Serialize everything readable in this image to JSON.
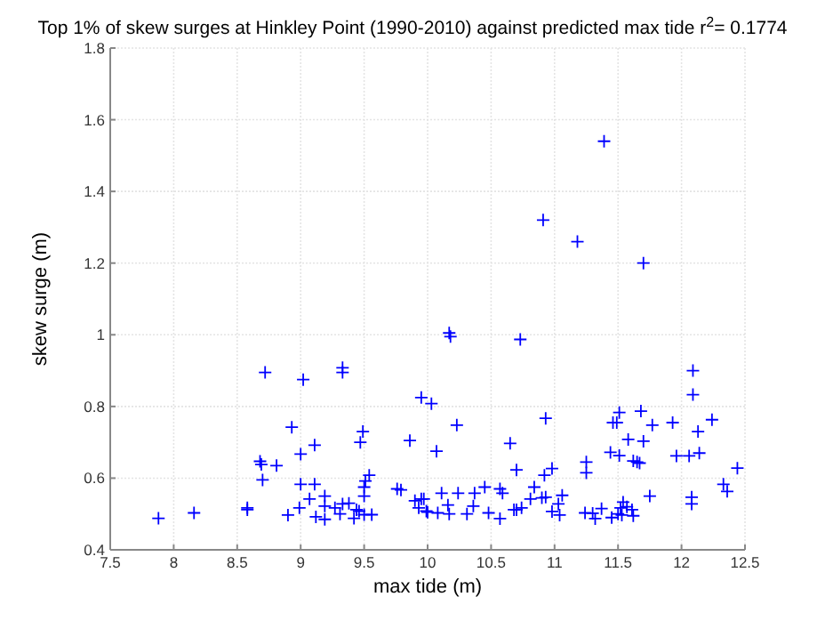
{
  "chart_data": {
    "type": "scatter",
    "title": "Top 1% of skew surges at Hinkley Point (1990-2010) against predicted max tide r$^{2}$= 0.1774",
    "xlabel": "max tide (m)",
    "ylabel": "skew surge (m)",
    "xlim": [
      7.5,
      12.5
    ],
    "xticks": [
      7.5,
      8,
      8.5,
      9,
      9.5,
      10,
      10.5,
      11,
      11.5,
      12,
      12.5
    ],
    "ylim": [
      0.4,
      1.8
    ],
    "yticks": [
      0.4,
      0.6,
      0.8,
      1,
      1.2,
      1.4,
      1.6,
      1.8
    ],
    "grid": true,
    "marker": "cross",
    "series": [
      {
        "color": "#0000ff",
        "x": [
          7.88,
          8.16,
          8.58,
          8.58,
          8.68,
          8.69,
          8.7,
          8.72,
          8.81,
          8.9,
          8.93,
          8.99,
          9.0,
          9.02,
          9.0,
          9.07,
          9.11,
          9.11,
          9.12,
          9.19,
          9.19,
          9.19,
          9.27,
          9.31,
          9.33,
          9.33,
          9.33,
          9.38,
          9.42,
          9.44,
          9.46,
          9.47,
          9.49,
          9.5,
          9.5,
          9.51,
          9.54,
          9.5,
          9.56,
          9.76,
          9.79,
          9.86,
          9.9,
          9.93,
          9.95,
          9.97,
          9.95,
          9.99,
          10.0,
          10.03,
          10.07,
          10.08,
          10.11,
          10.16,
          10.17,
          10.17,
          10.18,
          10.23,
          10.24,
          10.31,
          10.36,
          10.37,
          10.45,
          10.48,
          10.57,
          10.59,
          10.57,
          10.65,
          10.68,
          10.7,
          10.74,
          10.7,
          10.73,
          10.81,
          10.84,
          10.9,
          10.92,
          10.93,
          10.93,
          10.98,
          10.98,
          11.03,
          11.04,
          11.06,
          11.24,
          11.25,
          11.25,
          11.3,
          11.32,
          11.37,
          11.44,
          11.45,
          11.46,
          11.49,
          11.51,
          11.5,
          11.51,
          11.52,
          11.54,
          11.53,
          11.57,
          11.58,
          11.61,
          11.62,
          11.62,
          11.65,
          11.67,
          11.68,
          11.7,
          11.75,
          11.77,
          11.93,
          11.96,
          12.06,
          12.09,
          12.09,
          12.08,
          12.08,
          12.13,
          12.14,
          12.24,
          12.33,
          12.36,
          12.44,
          11.39,
          10.91,
          11.18,
          11.7
        ],
        "values": [
          0.488,
          0.503,
          0.517,
          0.512,
          0.647,
          0.638,
          0.595,
          0.895,
          0.635,
          0.497,
          0.742,
          0.517,
          0.667,
          0.875,
          0.583,
          0.542,
          0.583,
          0.692,
          0.492,
          0.55,
          0.522,
          0.485,
          0.517,
          0.5,
          0.528,
          0.908,
          0.895,
          0.53,
          0.488,
          0.512,
          0.508,
          0.7,
          0.73,
          0.55,
          0.575,
          0.592,
          0.608,
          0.498,
          0.498,
          0.57,
          0.567,
          0.705,
          0.537,
          0.517,
          0.542,
          0.542,
          0.825,
          0.508,
          0.505,
          0.808,
          0.675,
          0.503,
          0.558,
          0.525,
          0.5,
          1.005,
          0.995,
          0.748,
          0.558,
          0.5,
          0.522,
          0.558,
          0.575,
          0.503,
          0.57,
          0.558,
          0.487,
          0.697,
          0.512,
          0.512,
          0.517,
          0.623,
          0.987,
          0.542,
          0.575,
          0.545,
          0.608,
          0.547,
          0.767,
          0.627,
          0.507,
          0.528,
          0.497,
          0.552,
          0.503,
          0.645,
          0.615,
          0.502,
          0.487,
          0.515,
          0.672,
          0.49,
          0.755,
          0.755,
          0.783,
          0.5,
          0.663,
          0.517,
          0.533,
          0.497,
          0.52,
          0.708,
          0.512,
          0.648,
          0.495,
          0.645,
          0.642,
          0.787,
          0.703,
          0.55,
          0.748,
          0.755,
          0.662,
          0.662,
          0.9,
          0.833,
          0.547,
          0.528,
          0.73,
          0.67,
          0.763,
          0.583,
          0.563,
          0.628,
          1.54,
          1.32,
          1.26,
          1.2
        ]
      }
    ]
  }
}
